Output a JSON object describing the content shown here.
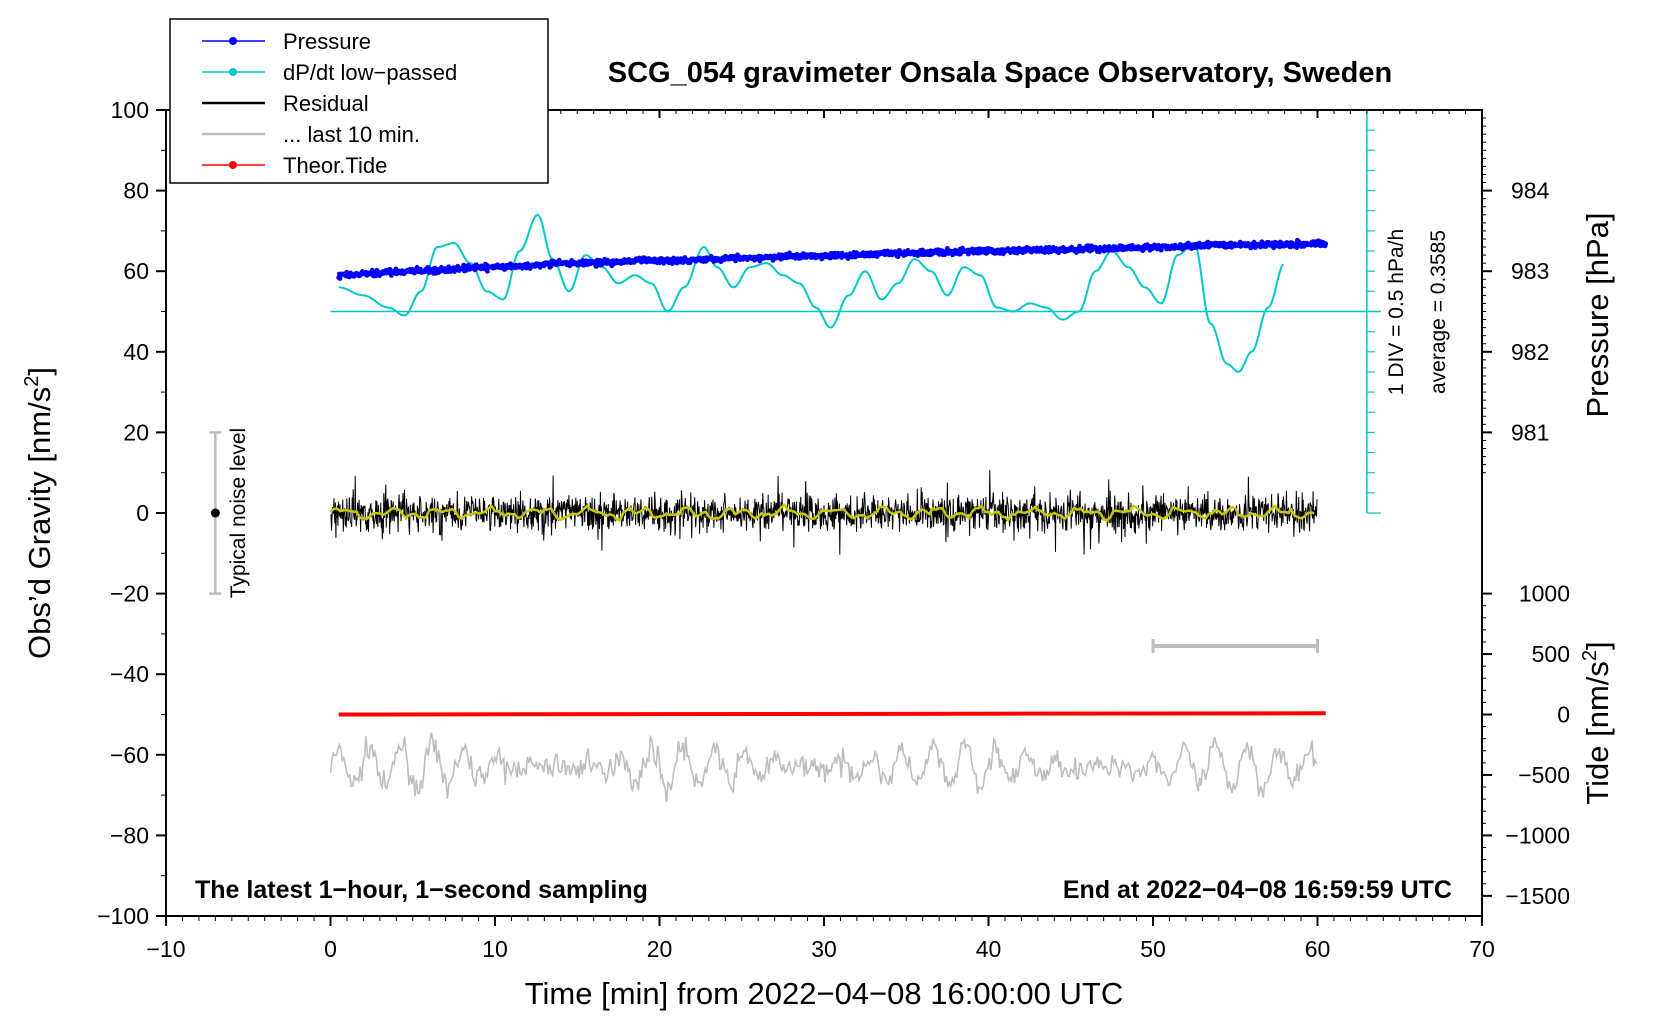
{
  "chart_data": {
    "type": "line",
    "title": "SCG_054 gravimeter Onsala Space Observatory, Sweden",
    "xlabel": "Time [min] from 2022−04−08 16:00:00 UTC",
    "xlim": [
      -10,
      70
    ],
    "xticks": [
      -10,
      0,
      10,
      20,
      30,
      40,
      50,
      60,
      70
    ],
    "xtick_labels": [
      "−10",
      "0",
      "10",
      "20",
      "30",
      "40",
      "50",
      "60",
      "70"
    ],
    "left_axis": {
      "label": "Obs’d Gravity [nm/s",
      "label_sup": "2",
      "label_end": "]",
      "range": [
        -100,
        100
      ],
      "ticks": [
        -100,
        -80,
        -60,
        -40,
        -20,
        0,
        20,
        40,
        60,
        80,
        100
      ],
      "tick_labels": [
        "−100",
        "−80",
        "−60",
        "−40",
        "−20",
        "0",
        "20",
        "40",
        "60",
        "80",
        "100"
      ]
    },
    "pressure_axis": {
      "label": "Pressure [hPa]",
      "ticks": [
        981,
        982,
        983,
        984
      ],
      "tick_labels": [
        "981",
        "982",
        "983",
        "984"
      ],
      "gravity_at_983": 60,
      "gravity_per_hPa": 20
    },
    "tide_axis": {
      "label": "Tide [nm/s",
      "label_sup": "2",
      "label_end": "]",
      "ticks": [
        -1500,
        -1000,
        -500,
        0,
        500,
        1000
      ],
      "tick_labels": [
        "−1500",
        "−1000",
        "−500",
        "0",
        "500",
        "1000"
      ],
      "gravity_at_0": -50,
      "gravity_per_unit": 0.03
    },
    "legend": {
      "position": "top-left",
      "entries": [
        {
          "label": "Pressure",
          "color": "#0000ff",
          "marker": true
        },
        {
          "label": "dP/dt low−passed",
          "color": "#00c8c8",
          "marker": true
        },
        {
          "label": "Residual",
          "color": "#000000",
          "marker": false
        },
        {
          "label": "... last 10 min.",
          "color": "#bebebe",
          "marker": false
        },
        {
          "label": "Theor.Tide",
          "color": "#ff0000",
          "marker": true
        }
      ]
    },
    "series": [
      {
        "name": "Pressure",
        "color": "#0000ff",
        "x": [
          0.5,
          5,
          10,
          15,
          20,
          25,
          30,
          35,
          40,
          45,
          50,
          55,
          60.5
        ],
        "y": [
          59,
          60,
          61,
          62,
          62.7,
          63.2,
          63.9,
          64.5,
          65,
          65.4,
          65.9,
          66.6,
          66.8
        ]
      },
      {
        "name": "dP/dt low−passed",
        "color": "#00c8c8",
        "x": [
          0.5,
          2,
          3.5,
          4.5,
          5.5,
          6.5,
          7.5,
          8.5,
          9.5,
          10.5,
          11.5,
          12.6,
          13.5,
          14.5,
          15.5,
          16.5,
          17.5,
          18.5,
          19.5,
          20.5,
          21.5,
          22.7,
          23.5,
          24.5,
          25.5,
          26.5,
          27.5,
          28.5,
          29.5,
          30.4,
          31.5,
          32.5,
          33.5,
          34.5,
          35.5,
          36.5,
          37.5,
          38.5,
          39.5,
          40.5,
          41.5,
          42.5,
          43.5,
          44.5,
          45.5,
          46.5,
          47.5,
          48.5,
          49.5,
          50.5,
          51.5,
          52.5,
          53.5,
          54.5,
          55.2,
          56,
          57,
          58
        ],
        "y": [
          56,
          54,
          51,
          49,
          55,
          66,
          67,
          62,
          55,
          53,
          65,
          74,
          63,
          55,
          64,
          61,
          57,
          59,
          57,
          50,
          56,
          66,
          61,
          56,
          61,
          62,
          59,
          57,
          51,
          46,
          54,
          60,
          53,
          57,
          63,
          60,
          54,
          61,
          59,
          51,
          50,
          52,
          51,
          48,
          50,
          60,
          65,
          61,
          56,
          52,
          64,
          67,
          47,
          37,
          35,
          40,
          51,
          62
        ]
      },
      {
        "name": "Residual",
        "color": "#000000",
        "x_range": [
          0,
          60
        ],
        "center": 0,
        "typical_amplitude": 5
      },
      {
        "name": "Residual (1-min average)",
        "color": "#c8c800",
        "x_range": [
          0,
          60
        ],
        "center": 0
      },
      {
        "name": "... last 10 min.",
        "color": "#bebebe",
        "x_range": [
          0,
          60
        ],
        "center": -63,
        "typical_amplitude": 5,
        "bracket": [
          50,
          60
        ]
      },
      {
        "name": "Theor.Tide",
        "color": "#ff0000",
        "x": [
          0.5,
          60.5
        ],
        "tide": [
          0,
          10
        ]
      }
    ],
    "noise_bar": {
      "label": "Typical noise level",
      "x": -7,
      "y_center": 0,
      "y_range": [
        -20,
        20
      ]
    },
    "dpdt_scale": {
      "x": 63,
      "zero_y": 50,
      "top_y": 100,
      "bottom_y": 0,
      "div_step": 5,
      "label": "1 DIV = 0.5 hPa/h",
      "average_label": "average = 0.3585"
    },
    "footer_left": "The latest 1−hour, 1−second sampling",
    "footer_right": "End at 2022−04−08 16:59:59 UTC"
  }
}
